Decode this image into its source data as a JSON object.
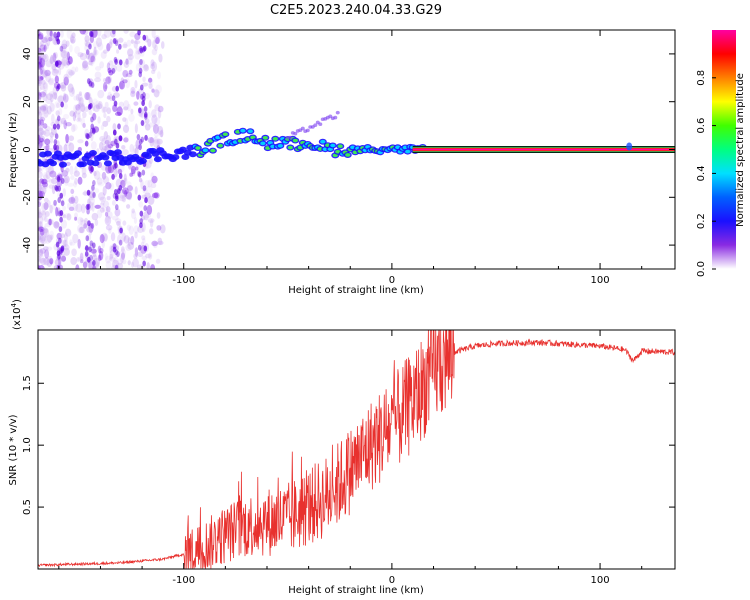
{
  "title": "C2E5.2023.240.04.33.G29",
  "chart_data": [
    {
      "type": "heatmap",
      "name": "spectrogram",
      "xlabel": "Height of straight line (km)",
      "ylabel": "Frequency (Hz)",
      "xlim": [
        -170,
        136
      ],
      "ylim": [
        -50,
        50
      ],
      "x_tick_labels": [
        "-100",
        "0",
        "100"
      ],
      "y_tick_labels": [
        "-40",
        "-20",
        "0",
        "20",
        "40"
      ],
      "x_tick_values": [
        -100,
        0,
        100
      ],
      "y_tick_values": [
        -40,
        -20,
        0,
        20,
        40
      ],
      "ridge": {
        "description": "main spectral line",
        "x": [
          -170,
          -150,
          -125,
          -110,
          -95,
          -80,
          -70,
          -60,
          -50,
          -40,
          -30,
          -20,
          -10,
          0,
          15,
          50,
          100,
          136
        ],
        "y": [
          -4,
          -4,
          -3,
          -2,
          -1,
          4,
          6,
          3,
          2,
          3,
          0,
          0,
          0,
          0,
          0,
          0,
          0,
          0
        ]
      },
      "colorbar": {
        "label": "Normalized spectral amplitude",
        "range": [
          0,
          1
        ],
        "tick_labels": [
          "0.0",
          "0.2",
          "0.4",
          "0.6",
          "0.8"
        ],
        "tick_values": [
          0.0,
          0.2,
          0.4,
          0.6,
          0.8
        ]
      }
    },
    {
      "type": "line",
      "name": "snr",
      "xlabel": "Height of straight line (km)",
      "ylabel": "SNR (10 * v/v)",
      "multiplier": "(x10",
      "multiplier_exp": "4",
      "multiplier_close": ")",
      "xlim": [
        -170,
        136
      ],
      "ylim": [
        0,
        1.93
      ],
      "x_tick_labels": [
        "-100",
        "0",
        "100"
      ],
      "y_tick_labels": [
        "0.5",
        "1.0",
        "1.5"
      ],
      "x_tick_values": [
        -100,
        0,
        100
      ],
      "y_tick_values": [
        0.5,
        1.0,
        1.5
      ],
      "color": "#e8312e",
      "envelope": {
        "x": [
          -170,
          -130,
          -110,
          -100,
          -90,
          -80,
          -70,
          -60,
          -50,
          -40,
          -30,
          -20,
          -10,
          0,
          10,
          20,
          30,
          40,
          50,
          70,
          100,
          112,
          116,
          120,
          136
        ],
        "y": [
          0.03,
          0.05,
          0.08,
          0.12,
          0.18,
          0.28,
          0.35,
          0.38,
          0.4,
          0.5,
          0.6,
          0.8,
          1.0,
          1.15,
          1.35,
          1.6,
          1.75,
          1.8,
          1.82,
          1.83,
          1.8,
          1.77,
          1.68,
          1.76,
          1.75
        ]
      }
    }
  ]
}
